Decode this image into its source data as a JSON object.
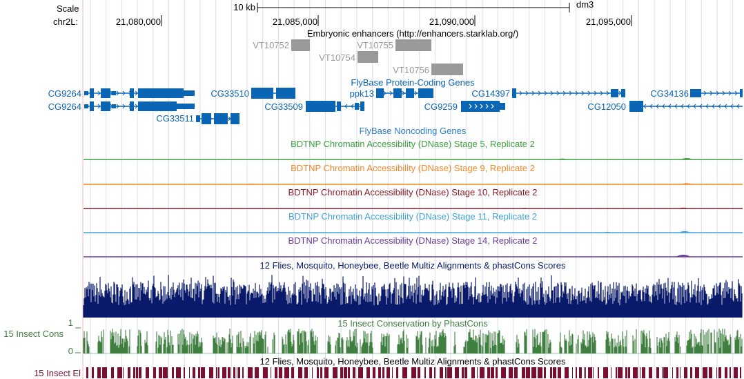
{
  "ruler": {
    "scale_label": "Scale",
    "chrom_label": "chr2L:",
    "scale_bar_label": "10 kb",
    "assembly": "dm3",
    "ticks": [
      "21,080,000",
      "21,085,000",
      "21,090,000",
      "21,095,000"
    ]
  },
  "tracks": {
    "enhancers": {
      "title": "Embryonic enhancers (http://enhancers.starklab.org/)",
      "color": "#999999",
      "items": [
        "VT10752",
        "VT10755",
        "VT10754",
        "VT10756"
      ]
    },
    "protein_genes": {
      "title": "FlyBase Protein-Coding Genes",
      "color": "#0a65b5",
      "genes": [
        "CG9264",
        "CG9264",
        "CG33511",
        "CG33510",
        "CG33509",
        "ppk13",
        "CG9259",
        "CG14397",
        "CG12050",
        "CG34136"
      ]
    },
    "noncoding": {
      "title": "FlyBase Noncoding Genes",
      "color": "#2a7fd0"
    },
    "dnase": [
      {
        "title": "BDTNP Chromatin Accessibility (DNase) Stage 5, Replicate 2",
        "color": "#3aa13a"
      },
      {
        "title": "BDTNP Chromatin Accessibility (DNase) Stage 9, Replicate 2",
        "color": "#f28424"
      },
      {
        "title": "BDTNP Chromatin Accessibility (DNase) Stage 10, Replicate 2",
        "color": "#8b1a24"
      },
      {
        "title": "BDTNP Chromatin Accessibility (DNase) Stage 11, Replicate 2",
        "color": "#3fa3d8"
      },
      {
        "title": "BDTNP Chromatin Accessibility (DNase) Stage 14, Replicate 2",
        "color": "#6a3d9a"
      }
    ],
    "multiz": {
      "title": "12 Flies, Mosquito, Honeybee, Beetle Multiz Alignments & phastCons Scores",
      "color": "#0a1a6b"
    },
    "phastcons": {
      "title": "15 Insect Conservation by PhastCons",
      "side_label": "15 Insect Cons",
      "axis_max": "1",
      "axis_min": "0",
      "color": "#3f7f3f"
    },
    "elements": {
      "title": "12 Flies, Mosquito, Honeybee, Beetle Multiz Alignments & phastCons Scores",
      "side_label": "15 Insect El",
      "color": "#7a1030"
    }
  }
}
